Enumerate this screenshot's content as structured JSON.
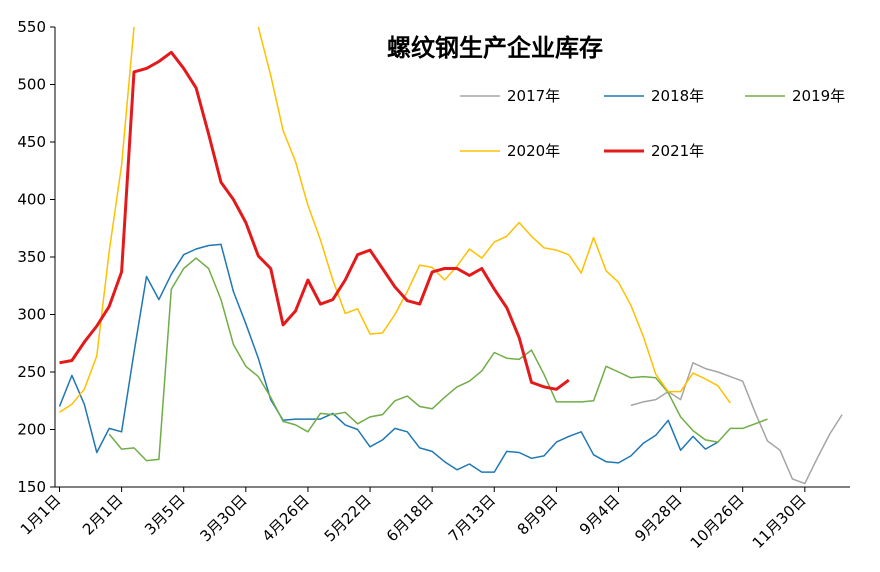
{
  "chart_data": {
    "type": "line",
    "title": "螺纹钢生产企业库存",
    "xlabel": "",
    "ylabel": "",
    "ylim": [
      150,
      550
    ],
    "yticks": [
      150,
      200,
      250,
      300,
      350,
      400,
      450,
      500,
      550
    ],
    "xticks": [
      "1月1日",
      "2月1日",
      "3月5日",
      "3月30日",
      "4月26日",
      "5月22日",
      "6月18日",
      "7月13日",
      "8月9日",
      "9月4日",
      "9月28日",
      "10月26日",
      "11月30日"
    ],
    "xtick_weeks": [
      0,
      5,
      10,
      15,
      20,
      25,
      30,
      35,
      40,
      45,
      50,
      55,
      60
    ],
    "x_count": 64,
    "legend_position": "top-right",
    "grid": false,
    "series": [
      {
        "name": "2017年",
        "color": "#A5A5A5",
        "width": 1.5,
        "values": [
          null,
          null,
          null,
          null,
          null,
          null,
          null,
          null,
          null,
          null,
          null,
          null,
          null,
          null,
          null,
          null,
          null,
          null,
          null,
          null,
          null,
          null,
          null,
          null,
          null,
          null,
          null,
          null,
          null,
          null,
          null,
          null,
          null,
          null,
          null,
          null,
          null,
          null,
          null,
          null,
          null,
          null,
          null,
          null,
          null,
          null,
          221,
          224,
          226,
          233,
          226,
          258,
          253,
          250,
          246,
          242,
          215,
          190,
          182,
          157,
          153,
          175,
          196,
          213
        ]
      },
      {
        "name": "2018年",
        "color": "#1F77B4",
        "width": 1.5,
        "values": [
          220,
          247,
          222,
          180,
          201,
          198,
          267,
          333,
          313,
          335,
          352,
          357,
          360,
          361,
          320,
          292,
          262,
          226,
          208,
          209,
          209,
          209,
          214,
          204,
          200,
          185,
          191,
          201,
          198,
          184,
          181,
          172,
          165,
          170,
          163,
          163,
          181,
          180,
          175,
          177,
          189,
          194,
          198,
          178,
          172,
          171,
          177,
          188,
          195,
          208,
          182,
          194,
          183,
          189
        ]
      },
      {
        "name": "2019年",
        "color": "#70AD47",
        "width": 1.5,
        "values": [
          null,
          null,
          null,
          null,
          196,
          183,
          184,
          173,
          174,
          322,
          340,
          349,
          340,
          313,
          274,
          255,
          246,
          228,
          207,
          204,
          198,
          214,
          213,
          215,
          205,
          211,
          213,
          225,
          229,
          220,
          218,
          228,
          237,
          242,
          251,
          267,
          262,
          261,
          269,
          248,
          224,
          224,
          224,
          225,
          255,
          250,
          245,
          246,
          245,
          232,
          211,
          199,
          191,
          189,
          201,
          201,
          205,
          209
        ]
      },
      {
        "name": "2020年",
        "color": "#FFC000",
        "width": 1.5,
        "values": [
          215,
          222,
          235,
          264,
          355,
          430,
          550,
          null,
          null,
          null,
          null,
          null,
          null,
          null,
          null,
          null,
          550,
          508,
          460,
          433,
          395,
          365,
          330,
          301,
          305,
          283,
          284,
          300,
          320,
          343,
          341,
          330,
          342,
          357,
          349,
          363,
          368,
          380,
          368,
          358,
          356,
          352,
          336,
          367,
          338,
          328,
          308,
          281,
          248,
          233,
          233,
          249,
          244,
          238,
          223
        ]
      },
      {
        "name": "2021年",
        "color": "#E31A1C",
        "width": 3,
        "values": [
          258,
          260,
          276,
          290,
          307,
          337,
          511,
          514,
          520,
          528,
          514,
          497,
          457,
          415,
          400,
          380,
          351,
          340,
          291,
          303,
          330,
          309,
          313,
          330,
          352,
          356,
          340,
          324,
          312,
          309,
          337,
          340,
          340,
          334,
          340,
          322,
          306,
          280,
          241,
          237,
          235,
          243
        ]
      }
    ]
  }
}
